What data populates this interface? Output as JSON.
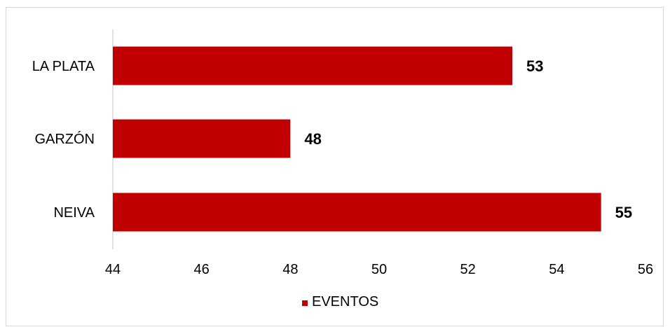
{
  "chart_data": {
    "type": "bar",
    "orientation": "horizontal",
    "categories": [
      "LA PLATA",
      "GARZÓN",
      "NEIVA"
    ],
    "series": [
      {
        "name": "EVENTOS",
        "values": [
          53,
          48,
          55
        ],
        "color": "#c00000"
      }
    ],
    "xlim": [
      44,
      56
    ],
    "xticks": [
      44,
      46,
      48,
      50,
      52,
      54,
      56
    ],
    "grid": false,
    "data_labels": true,
    "legend_position": "bottom"
  }
}
